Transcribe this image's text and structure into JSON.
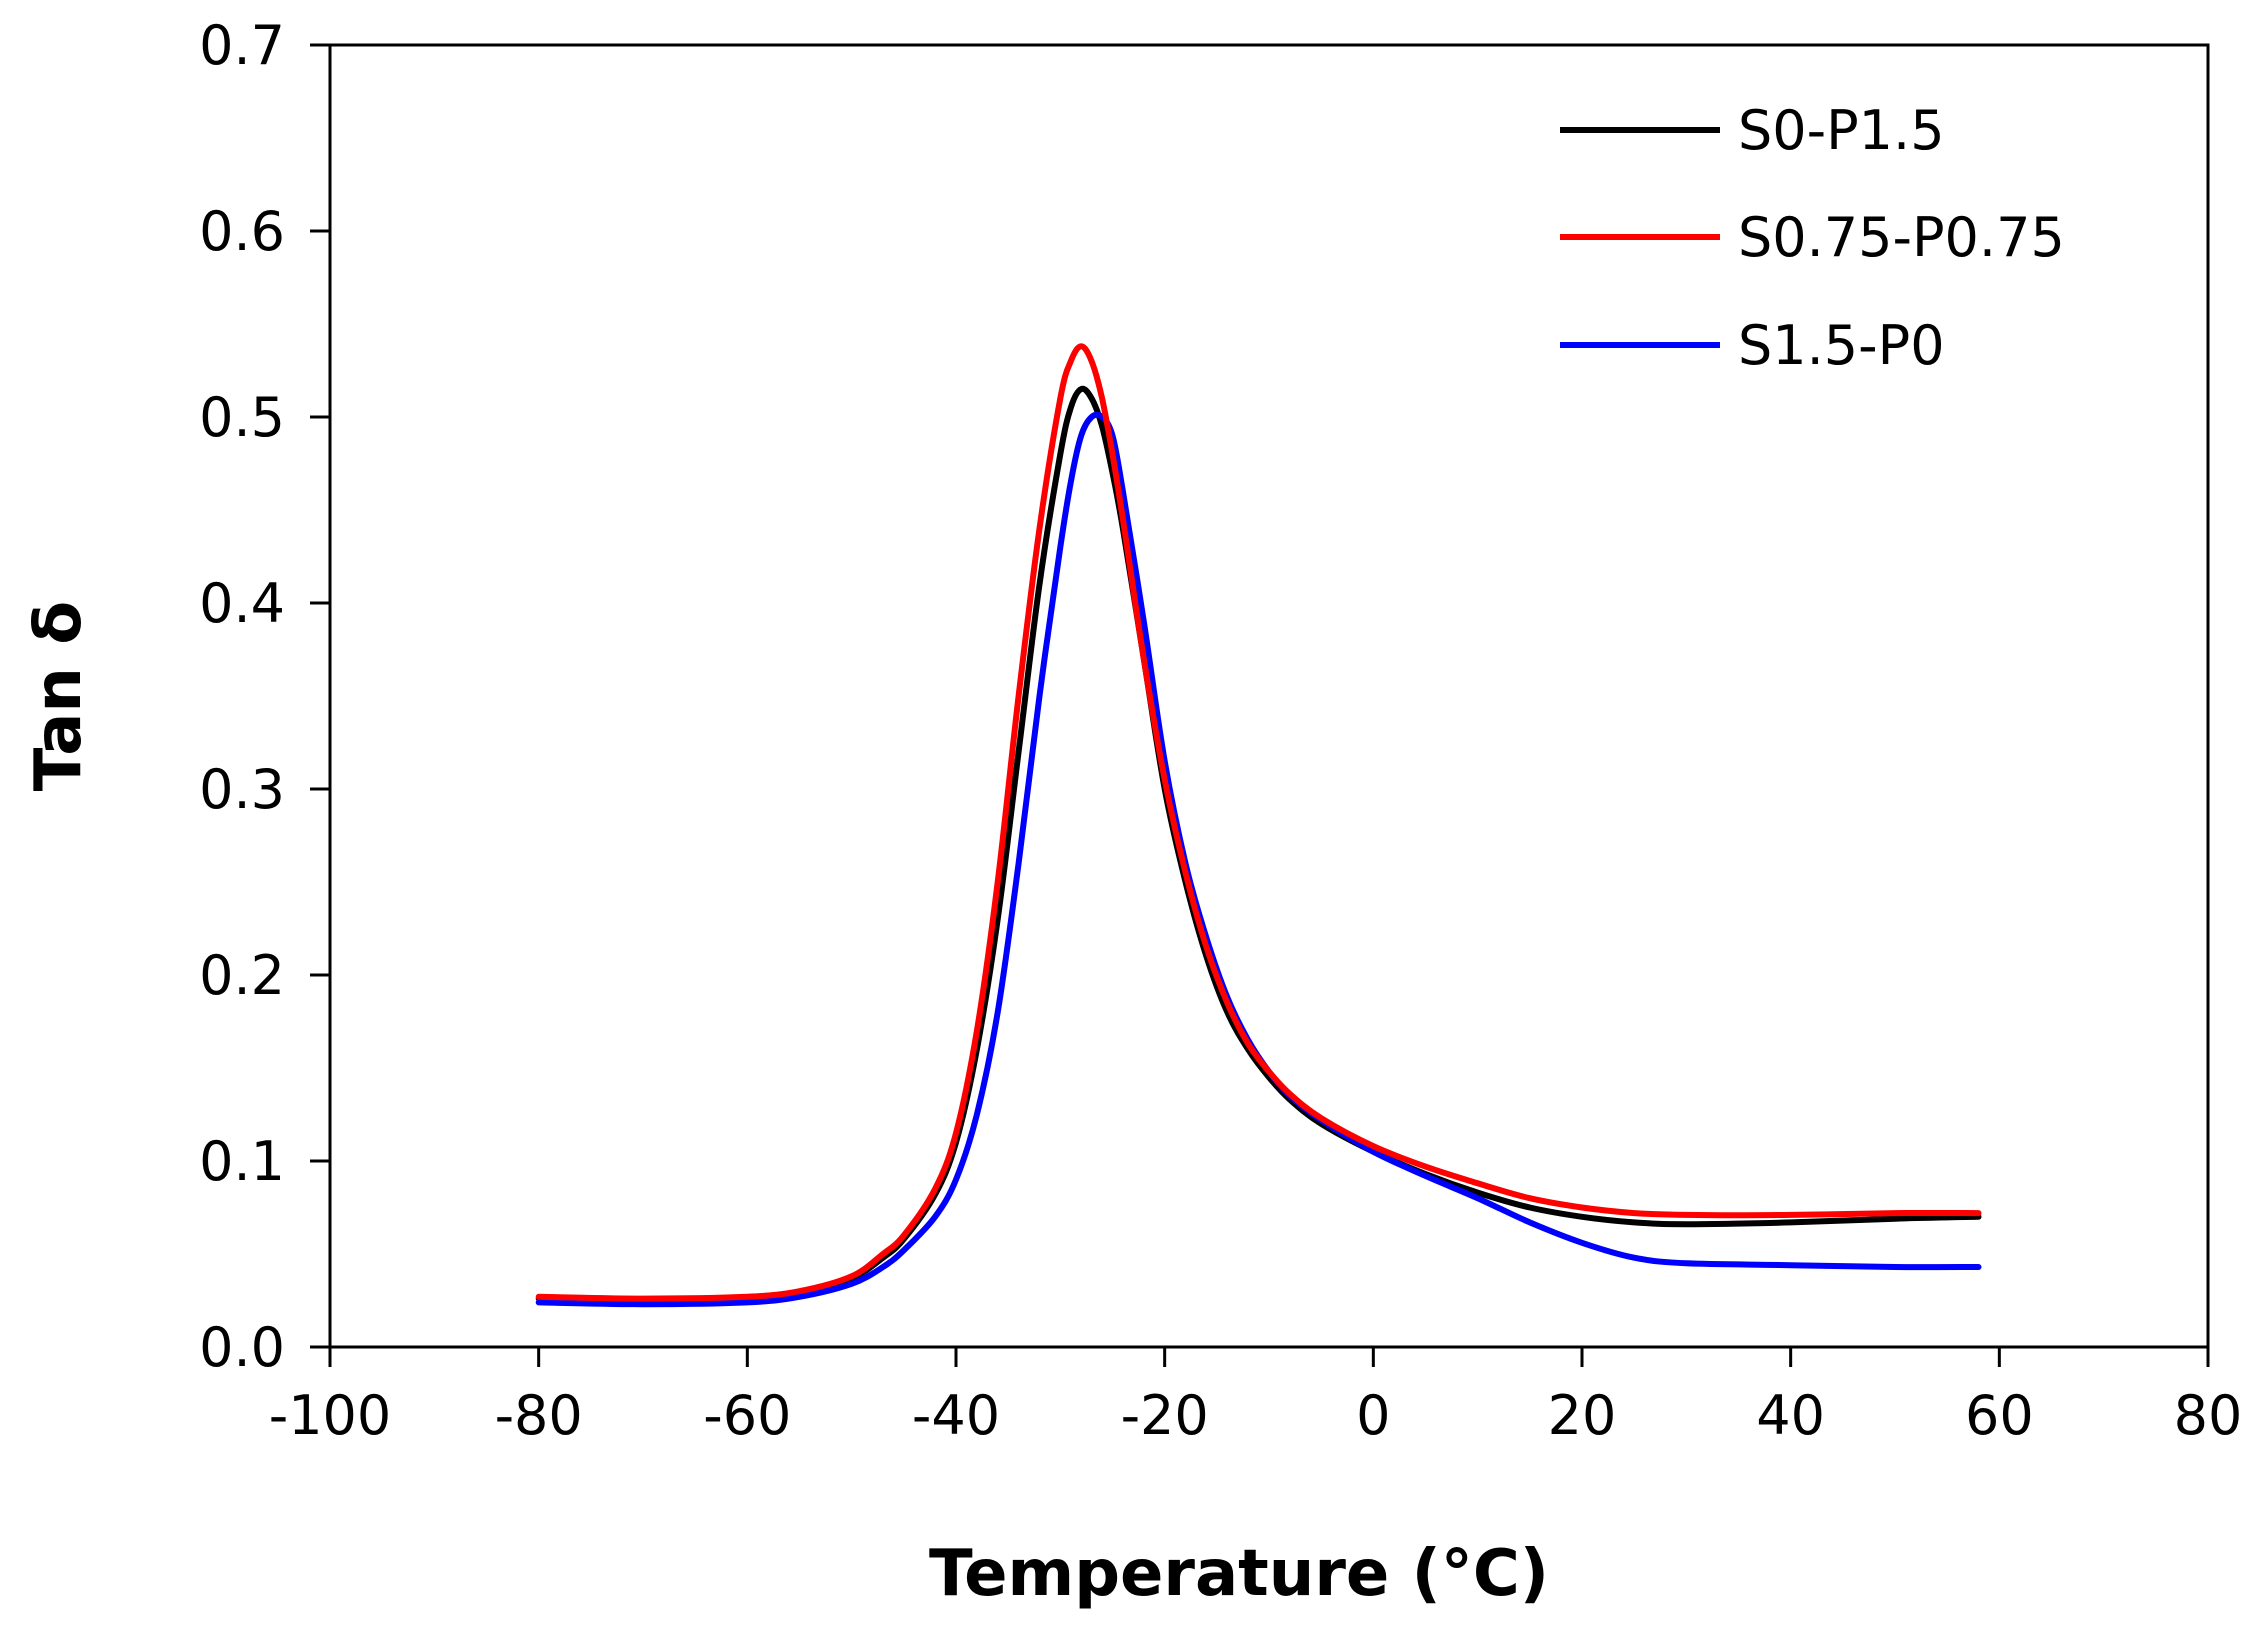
{
  "chart_data": {
    "type": "line",
    "title": "",
    "xlabel": "Temperature (°C)",
    "ylabel": "Tan δ",
    "xlim": [
      -100,
      80
    ],
    "ylim": [
      0,
      0.7
    ],
    "x_ticks": [
      "-100",
      "-80",
      "-60",
      "-40",
      "-20",
      "0",
      "20",
      "40",
      "60",
      "80"
    ],
    "y_ticks": [
      "0.0",
      "0.1",
      "0.2",
      "0.3",
      "0.4",
      "0.5",
      "0.6",
      "0.7"
    ],
    "x_tick_values": [
      -100,
      -80,
      -60,
      -40,
      -20,
      0,
      20,
      40,
      60,
      80
    ],
    "y_tick_values": [
      0,
      0.1,
      0.2,
      0.3,
      0.4,
      0.5,
      0.6,
      0.7
    ],
    "grid": false,
    "legend_position": "top-right",
    "series": [
      {
        "name": "S0-P1.5",
        "color": "#000000",
        "x": [
          -80,
          -70,
          -60,
          -55,
          -50,
          -47,
          -45,
          -42,
          -40,
          -38,
          -36,
          -34,
          -32,
          -30,
          -29,
          -28,
          -27,
          -26,
          -25,
          -24,
          -22,
          -20,
          -18,
          -16,
          -14,
          -12,
          -10,
          -8,
          -5,
          0,
          5,
          10,
          15,
          20,
          25,
          30,
          40,
          50,
          58
        ],
        "y": [
          0.026,
          0.025,
          0.026,
          0.029,
          0.037,
          0.048,
          0.058,
          0.082,
          0.11,
          0.16,
          0.23,
          0.32,
          0.41,
          0.48,
          0.505,
          0.515,
          0.51,
          0.495,
          0.47,
          0.44,
          0.37,
          0.3,
          0.25,
          0.21,
          0.18,
          0.16,
          0.145,
          0.133,
          0.12,
          0.105,
          0.093,
          0.083,
          0.075,
          0.07,
          0.067,
          0.066,
          0.067,
          0.069,
          0.07
        ]
      },
      {
        "name": "S0.75-P0.75",
        "color": "#ff0000",
        "x": [
          -80,
          -70,
          -60,
          -55,
          -50,
          -47,
          -45,
          -42,
          -40,
          -38,
          -36,
          -34,
          -32,
          -30,
          -29,
          -28,
          -27,
          -26,
          -25,
          -24,
          -22,
          -20,
          -18,
          -16,
          -14,
          -12,
          -10,
          -8,
          -5,
          0,
          5,
          10,
          15,
          20,
          25,
          30,
          40,
          50,
          58
        ],
        "y": [
          0.027,
          0.026,
          0.027,
          0.03,
          0.038,
          0.05,
          0.06,
          0.085,
          0.115,
          0.17,
          0.25,
          0.35,
          0.44,
          0.51,
          0.53,
          0.538,
          0.53,
          0.51,
          0.48,
          0.445,
          0.37,
          0.305,
          0.255,
          0.215,
          0.185,
          0.163,
          0.148,
          0.136,
          0.123,
          0.108,
          0.097,
          0.088,
          0.08,
          0.075,
          0.072,
          0.071,
          0.071,
          0.072,
          0.072
        ]
      },
      {
        "name": "S1.5-P0",
        "color": "#0000ff",
        "x": [
          -80,
          -70,
          -60,
          -55,
          -50,
          -47,
          -45,
          -42,
          -40,
          -38,
          -36,
          -34,
          -32,
          -30,
          -29,
          -28,
          -27,
          -26,
          -25,
          -24,
          -22,
          -20,
          -18,
          -16,
          -14,
          -12,
          -10,
          -8,
          -5,
          0,
          5,
          10,
          15,
          20,
          25,
          30,
          40,
          50,
          58
        ],
        "y": [
          0.024,
          0.023,
          0.024,
          0.027,
          0.034,
          0.043,
          0.052,
          0.07,
          0.09,
          0.125,
          0.18,
          0.26,
          0.35,
          0.43,
          0.465,
          0.49,
          0.5,
          0.5,
          0.49,
          0.46,
          0.39,
          0.315,
          0.26,
          0.22,
          0.188,
          0.165,
          0.148,
          0.135,
          0.122,
          0.105,
          0.092,
          0.08,
          0.067,
          0.056,
          0.048,
          0.045,
          0.044,
          0.043,
          0.043
        ]
      }
    ]
  }
}
